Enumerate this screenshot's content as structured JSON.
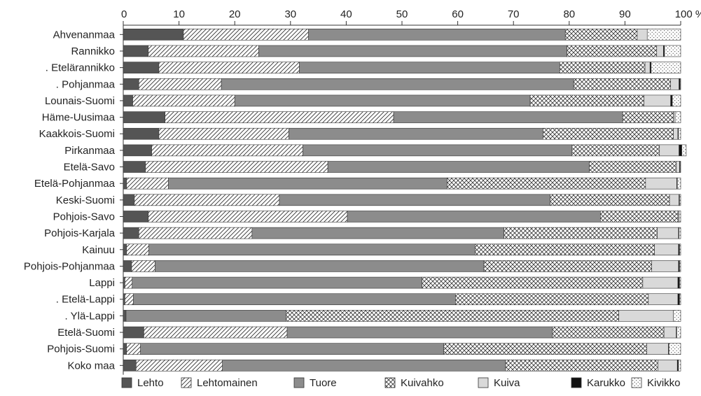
{
  "chart_data": {
    "type": "bar",
    "orientation": "horizontal",
    "stacked": true,
    "x_tick_labels": [
      "0",
      "10",
      "20",
      "30",
      "40",
      "50",
      "60",
      "70",
      "80",
      "90",
      "100 %"
    ],
    "xlim": [
      0,
      100
    ],
    "grid": false,
    "legend_position": "bottom",
    "categories": [
      "Ahvenanmaa",
      "Rannikko",
      ". Etelärannikko",
      ". Pohjanmaa",
      "Lounais-Suomi",
      "Häme-Uusimaa",
      "Kaakkois-Suomi",
      "Pirkanmaa",
      "Etelä-Savo",
      "Etelä-Pohjanmaa",
      "Keski-Suomi",
      "Pohjois-Savo",
      "Pohjois-Karjala",
      "Kainuu",
      "Pohjois-Pohjanmaa",
      "Lappi",
      ". Etelä-Lappi",
      ". Ylä-Lappi",
      "Etelä-Suomi",
      "Pohjois-Suomi",
      "Koko maa"
    ],
    "series": [
      {
        "name": "Lehto",
        "color": "#555555",
        "pattern": "solid",
        "values": [
          10.8,
          4.5,
          6.4,
          2.8,
          1.7,
          7.5,
          6.4,
          5.1,
          4.0,
          0.6,
          2.0,
          4.5,
          2.8,
          0.6,
          1.5,
          0.3,
          0.3,
          0.5,
          3.7,
          0.6,
          2.3
        ]
      },
      {
        "name": "Lehtomainen",
        "color": "#ffffff",
        "pattern": "diagonal",
        "values": [
          22.4,
          19.8,
          25.2,
          14.8,
          18.3,
          41.0,
          23.3,
          27.1,
          32.7,
          7.5,
          26.0,
          35.7,
          20.3,
          4.0,
          4.2,
          1.3,
          1.5,
          0.0,
          25.7,
          2.5,
          15.5
        ]
      },
      {
        "name": "Tuore",
        "color": "#8c8c8c",
        "pattern": "solid",
        "values": [
          46.1,
          55.3,
          46.7,
          63.2,
          53.0,
          41.1,
          45.6,
          48.3,
          46.9,
          50.0,
          48.6,
          45.4,
          45.2,
          58.5,
          59.0,
          52.0,
          57.8,
          28.7,
          47.6,
          54.4,
          50.8
        ]
      },
      {
        "name": "Kuivahko",
        "color": "#ffffff",
        "pattern": "crosshatch",
        "values": [
          12.9,
          16.1,
          15.3,
          17.4,
          20.4,
          9.1,
          23.4,
          15.7,
          15.6,
          35.6,
          21.4,
          13.9,
          27.5,
          32.2,
          30.1,
          39.6,
          34.6,
          59.7,
          20.0,
          36.4,
          27.3
        ]
      },
      {
        "name": "Kuiva",
        "color": "#d9d9d9",
        "pattern": "solid",
        "values": [
          1.8,
          1.2,
          0.9,
          1.5,
          4.8,
          0.3,
          0.8,
          3.5,
          0.6,
          5.6,
          1.7,
          0.2,
          3.8,
          4.3,
          4.8,
          6.3,
          5.3,
          9.8,
          2.2,
          3.9,
          3.5
        ]
      },
      {
        "name": "Karukko",
        "color": "#111111",
        "pattern": "solid",
        "values": [
          0.0,
          0.2,
          0.2,
          0.2,
          0.3,
          0.0,
          0.1,
          0.5,
          0.1,
          0.1,
          0.1,
          0.0,
          0.1,
          0.2,
          0.2,
          0.3,
          0.3,
          0.0,
          0.1,
          0.1,
          0.2
        ]
      },
      {
        "name": "Kivikko",
        "color": "#ffffff",
        "pattern": "dots",
        "values": [
          6.0,
          2.9,
          5.3,
          0.1,
          1.5,
          1.0,
          0.4,
          0.8,
          0.1,
          0.6,
          0.2,
          0.3,
          0.3,
          0.2,
          0.2,
          0.2,
          0.2,
          1.3,
          0.7,
          2.1,
          0.4
        ]
      }
    ]
  }
}
